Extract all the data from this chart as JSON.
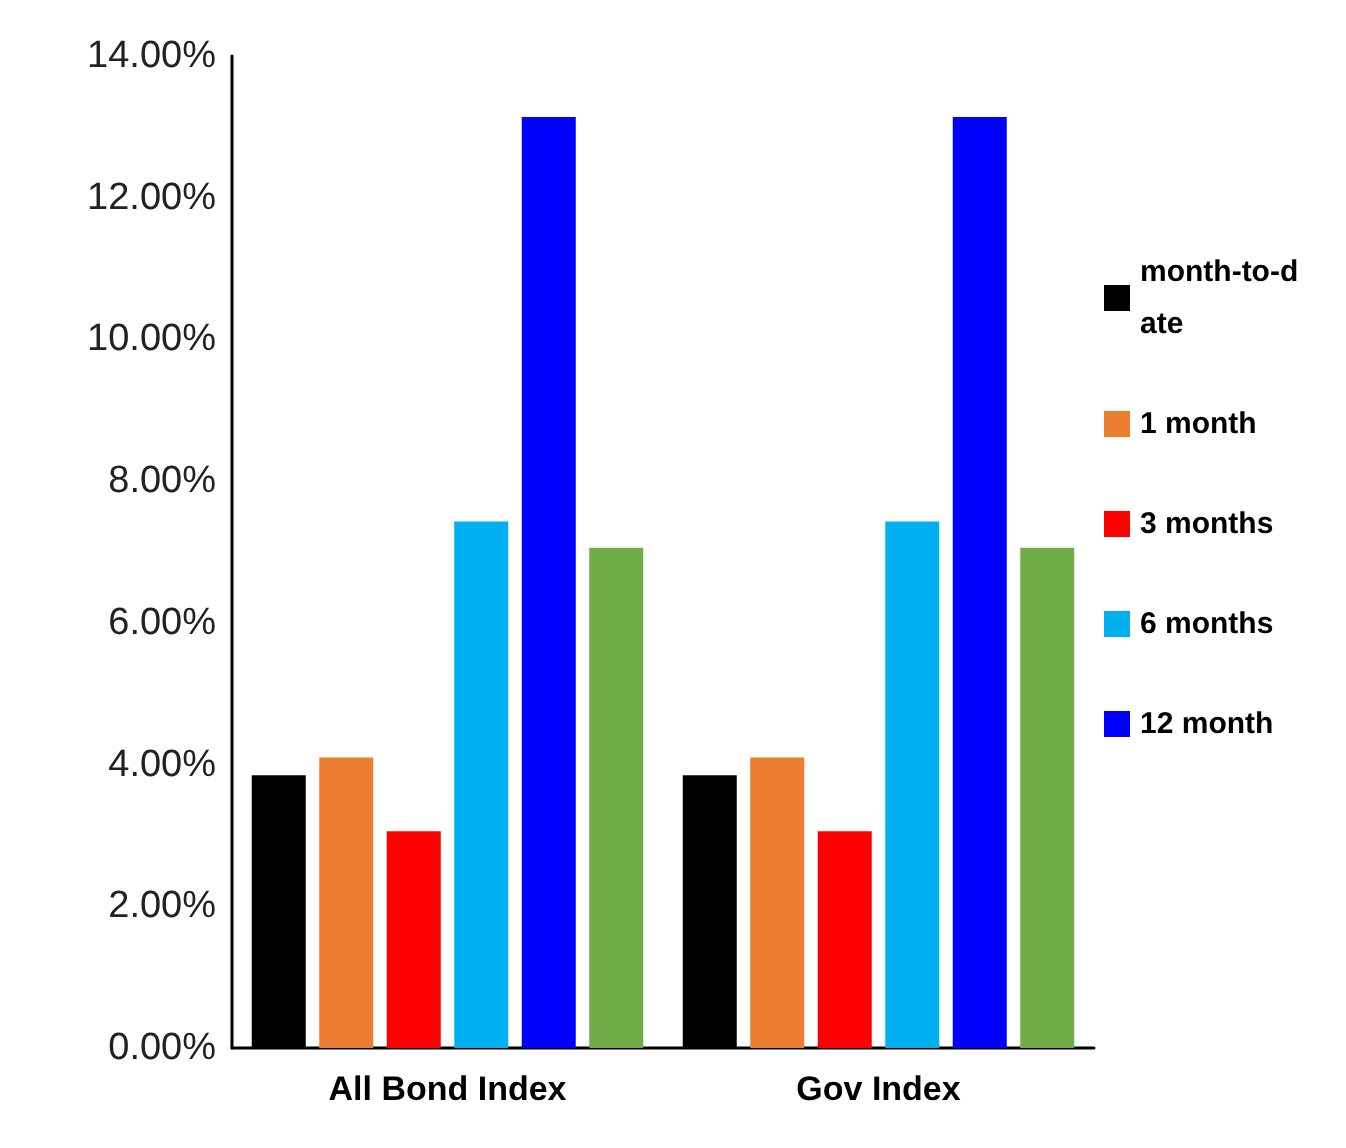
{
  "chart_data": {
    "type": "bar",
    "categories": [
      "All Bond Index",
      "Gov Index"
    ],
    "series": [
      {
        "name": "month-to-date",
        "color": "#000000",
        "values": [
          3.85,
          3.85
        ]
      },
      {
        "name": "1 month",
        "color": "#ed7d31",
        "values": [
          4.1,
          4.1
        ]
      },
      {
        "name": "3 months",
        "color": "#ff0000",
        "values": [
          3.06,
          3.06
        ]
      },
      {
        "name": "6 months",
        "color": "#00b0f0",
        "values": [
          7.43,
          7.43
        ]
      },
      {
        "name": "12 month",
        "color": "#0000ff",
        "values": [
          13.14,
          13.14
        ]
      },
      {
        "color": "#70ad47",
        "values": [
          7.06,
          7.06
        ]
      }
    ],
    "ylim": [
      0,
      14
    ],
    "yticks": [
      {
        "value": 0,
        "label": "0.00%"
      },
      {
        "value": 2,
        "label": "2.00%"
      },
      {
        "value": 4,
        "label": "4.00%"
      },
      {
        "value": 6,
        "label": "6.00%"
      },
      {
        "value": 8,
        "label": "8.00%"
      },
      {
        "value": 10,
        "label": "10.00%"
      },
      {
        "value": 12,
        "label": "12.00%"
      },
      {
        "value": 14,
        "label": "14.00%"
      }
    ],
    "grid": false,
    "legend": "right"
  }
}
